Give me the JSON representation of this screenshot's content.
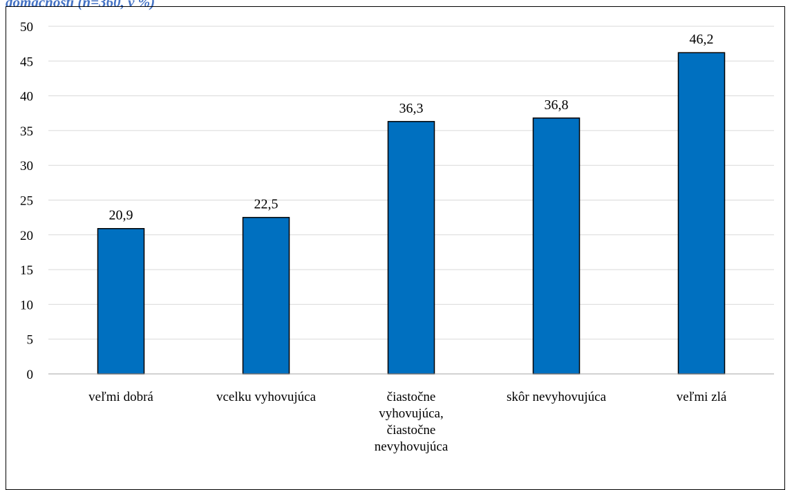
{
  "caption": "domácnosti (n=360, v %)",
  "chart_data": {
    "type": "bar",
    "title": "",
    "xlabel": "",
    "ylabel": "",
    "ylim": [
      0,
      50
    ],
    "yticks": [
      0,
      5,
      10,
      15,
      20,
      25,
      30,
      35,
      40,
      45,
      50
    ],
    "grid": true,
    "categories": [
      [
        "veľmi dobrá"
      ],
      [
        "vcelku vyhovujúca"
      ],
      [
        "čiastočne",
        "vyhovujúca,",
        "čiastočne",
        "nevyhovujúca"
      ],
      [
        "skôr nevyhovujúca"
      ],
      [
        "veľmi zlá"
      ]
    ],
    "values": [
      20.9,
      22.5,
      36.3,
      36.8,
      46.2
    ],
    "value_labels": [
      "20,9",
      "22,5",
      "36,3",
      "36,8",
      "46,2"
    ],
    "bar_color": "#0070c0",
    "bar_edge_color": "#000000",
    "grid_color": "#d9d9d9"
  }
}
